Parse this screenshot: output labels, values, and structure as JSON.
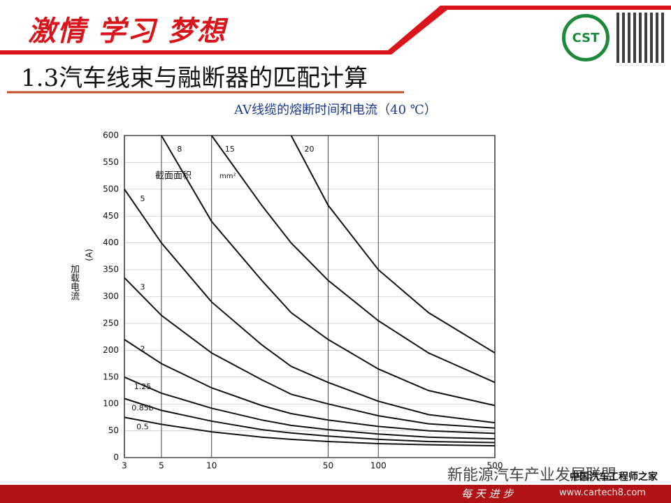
{
  "header": {
    "motto": "激情 学习 梦想",
    "section_title": "1.3汽车线束与融断器的匹配计算",
    "logo_text": "CST",
    "footer": "每 天 进 步"
  },
  "watermark": {
    "account": "新能源汽车产业发展联盟",
    "site_name": "中国汽车工程师之家",
    "url": "www.cartech8.com"
  },
  "chart_data": {
    "type": "line",
    "title": "AV线缆的熔断时间和电流（40 ℃）",
    "y_label": "(A)",
    "y_label_cn": "加载电流",
    "annotations": [
      "截面面积",
      "mm²"
    ],
    "log_x": true,
    "grid": true,
    "x": [
      3,
      5,
      10,
      20,
      30,
      50,
      100,
      200,
      500
    ],
    "xlim": [
      3,
      500
    ],
    "xticks": [
      3,
      5,
      10,
      50,
      100,
      500
    ],
    "ylim": [
      0,
      600
    ],
    "yticks": [
      0,
      50,
      100,
      150,
      200,
      250,
      300,
      350,
      400,
      450,
      500,
      550,
      600
    ],
    "series": [
      {
        "name": "0.5",
        "color": "#111111",
        "values": [
          75,
          62,
          48,
          38,
          34,
          30,
          26,
          24,
          22
        ]
      },
      {
        "name": "0.85b",
        "color": "#111111",
        "values": [
          110,
          88,
          68,
          52,
          46,
          40,
          34,
          30,
          28
        ]
      },
      {
        "name": "1.25",
        "color": "#111111",
        "values": [
          150,
          120,
          92,
          70,
          60,
          52,
          44,
          38,
          35
        ]
      },
      {
        "name": "2",
        "color": "#111111",
        "values": [
          220,
          175,
          130,
          97,
          82,
          70,
          58,
          50,
          45
        ]
      },
      {
        "name": "3",
        "color": "#111111",
        "values": [
          335,
          265,
          195,
          145,
          118,
          100,
          78,
          63,
          55
        ]
      },
      {
        "name": "5",
        "color": "#111111",
        "values": [
          500,
          400,
          290,
          210,
          170,
          140,
          105,
          80,
          65
        ]
      },
      {
        "name": "8",
        "color": "#111111",
        "values": [
          null,
          600,
          440,
          330,
          270,
          220,
          165,
          125,
          97
        ]
      },
      {
        "name": "15",
        "color": "#111111",
        "values": [
          null,
          null,
          600,
          470,
          400,
          330,
          255,
          195,
          140
        ]
      },
      {
        "name": "20",
        "color": "#111111",
        "values": [
          null,
          null,
          null,
          null,
          600,
          470,
          350,
          270,
          195
        ]
      }
    ]
  }
}
